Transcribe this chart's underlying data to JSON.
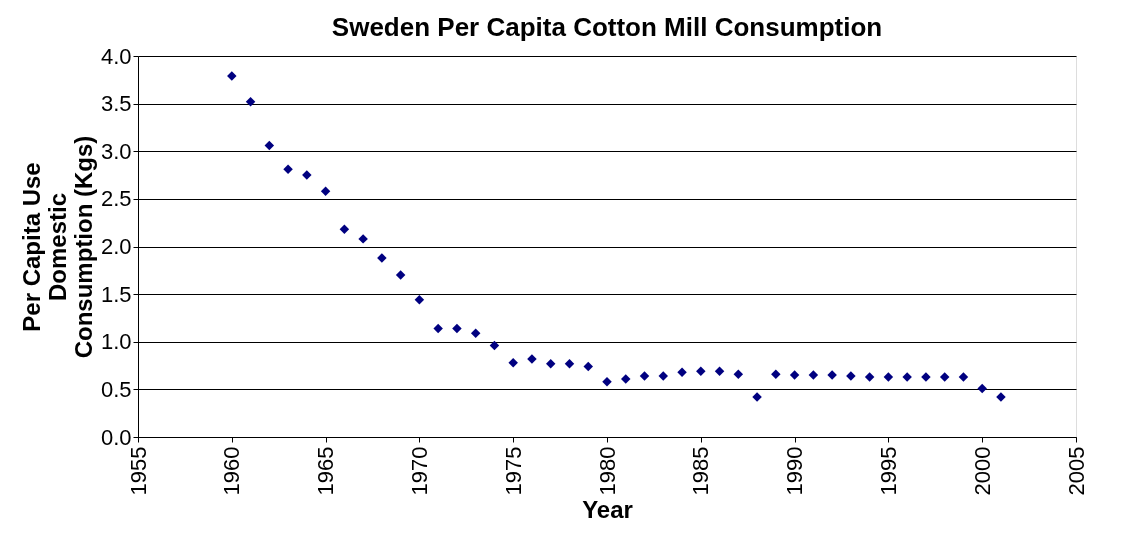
{
  "chart_data": {
    "type": "scatter",
    "title": "Sweden Per Capita Cotton Mill Consumption",
    "xlabel": "Year",
    "ylabel": "Per Capita Use Domestic Consumption (Kgs)",
    "x": [
      1960,
      1961,
      1962,
      1963,
      1964,
      1965,
      1966,
      1967,
      1968,
      1969,
      1970,
      1971,
      1972,
      1973,
      1974,
      1975,
      1976,
      1977,
      1978,
      1979,
      1980,
      1981,
      1982,
      1983,
      1984,
      1985,
      1986,
      1987,
      1988,
      1989,
      1990,
      1991,
      1992,
      1993,
      1994,
      1995,
      1996,
      1997,
      1998,
      1999,
      2000,
      2001
    ],
    "series": [
      {
        "color": "#000080",
        "values": [
          3.79,
          3.52,
          3.06,
          2.81,
          2.75,
          2.58,
          2.18,
          2.08,
          1.88,
          1.7,
          1.44,
          1.14,
          1.14,
          1.09,
          0.96,
          0.78,
          0.82,
          0.77,
          0.77,
          0.74,
          0.58,
          0.61,
          0.64,
          0.64,
          0.68,
          0.69,
          0.69,
          0.66,
          0.42,
          0.66,
          0.65,
          0.65,
          0.65,
          0.64,
          0.63,
          0.63,
          0.63,
          0.63,
          0.63,
          0.63,
          0.51,
          0.42
        ]
      }
    ],
    "xlim": [
      1955,
      2005
    ],
    "xticks": [
      1955,
      1960,
      1965,
      1970,
      1975,
      1980,
      1985,
      1990,
      1995,
      2000,
      2005
    ],
    "ylim": [
      0,
      4
    ],
    "yticks": [
      {
        "value": 0,
        "label": "0.0"
      },
      0.5,
      {
        "value": 1,
        "label": "1.0"
      },
      1.5,
      {
        "value": 2,
        "label": "2.0"
      },
      2.5,
      {
        "value": 3,
        "label": "3.0"
      },
      3.5,
      {
        "value": 4,
        "label": "4.0"
      }
    ],
    "grid": "y",
    "marker": "diamond",
    "legend": false
  }
}
